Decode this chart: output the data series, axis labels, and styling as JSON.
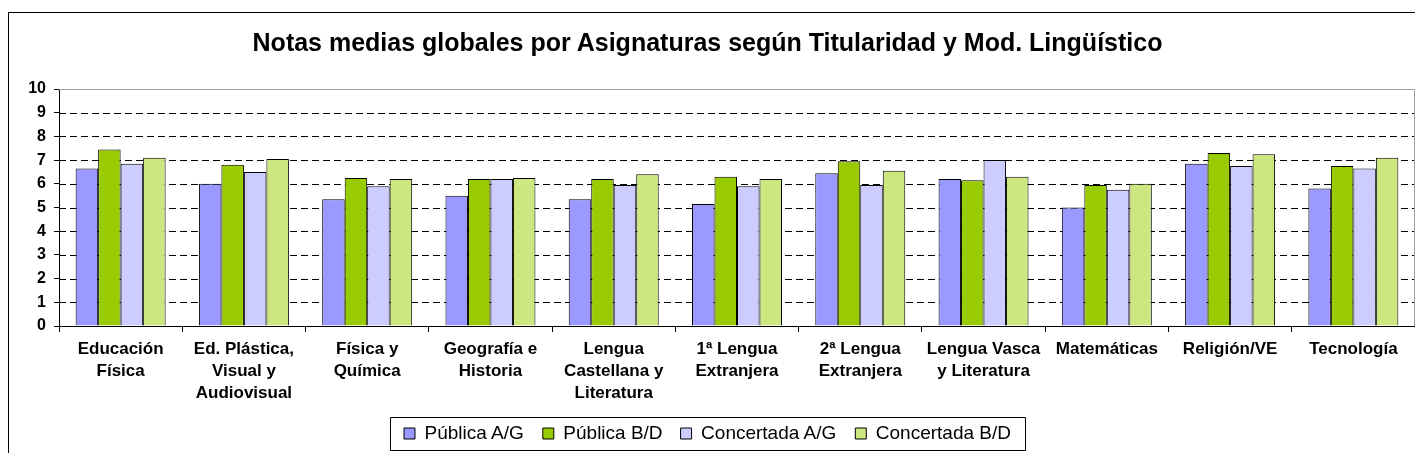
{
  "chart_data": {
    "type": "bar",
    "title": "Notas medias globales por Asignaturas según Titularidad y Mod. Lingüístico",
    "categories": [
      "Educación Física",
      "Ed. Plástica, Visual y Audiovisual",
      "Física y Química",
      "Geografía e Historia",
      "Lengua Castellana y Literatura",
      "1ª Lengua Extranjera",
      "2ª Lengua Extranjera",
      "Lengua Vasca y Literatura",
      "Matemáticas",
      "Religión/VE",
      "Tecnología"
    ],
    "series": [
      {
        "name": "Pública A/G",
        "color": "#9999ff",
        "values": [
          6.65,
          6.0,
          5.35,
          5.5,
          5.35,
          5.15,
          6.45,
          6.2,
          5.0,
          6.85,
          5.8
        ]
      },
      {
        "name": "Pública B/D",
        "color": "#99cc00",
        "values": [
          7.45,
          6.8,
          6.25,
          6.2,
          6.2,
          6.3,
          6.95,
          6.15,
          5.95,
          7.3,
          6.75
        ]
      },
      {
        "name": "Concertada A/G",
        "color": "#ccccff",
        "values": [
          6.85,
          6.5,
          5.9,
          6.2,
          5.95,
          5.9,
          5.95,
          7.0,
          5.75,
          6.75,
          6.65
        ]
      },
      {
        "name": "Concertada B/D",
        "color": "#cce680",
        "values": [
          7.1,
          7.05,
          6.2,
          6.25,
          6.4,
          6.2,
          6.55,
          6.3,
          6.0,
          7.25,
          7.1
        ]
      }
    ],
    "ylim": [
      0,
      10
    ],
    "yticks": [
      0,
      1,
      2,
      3,
      4,
      5,
      6,
      7,
      8,
      9,
      10
    ],
    "grid": "y",
    "legend": "bottom"
  }
}
